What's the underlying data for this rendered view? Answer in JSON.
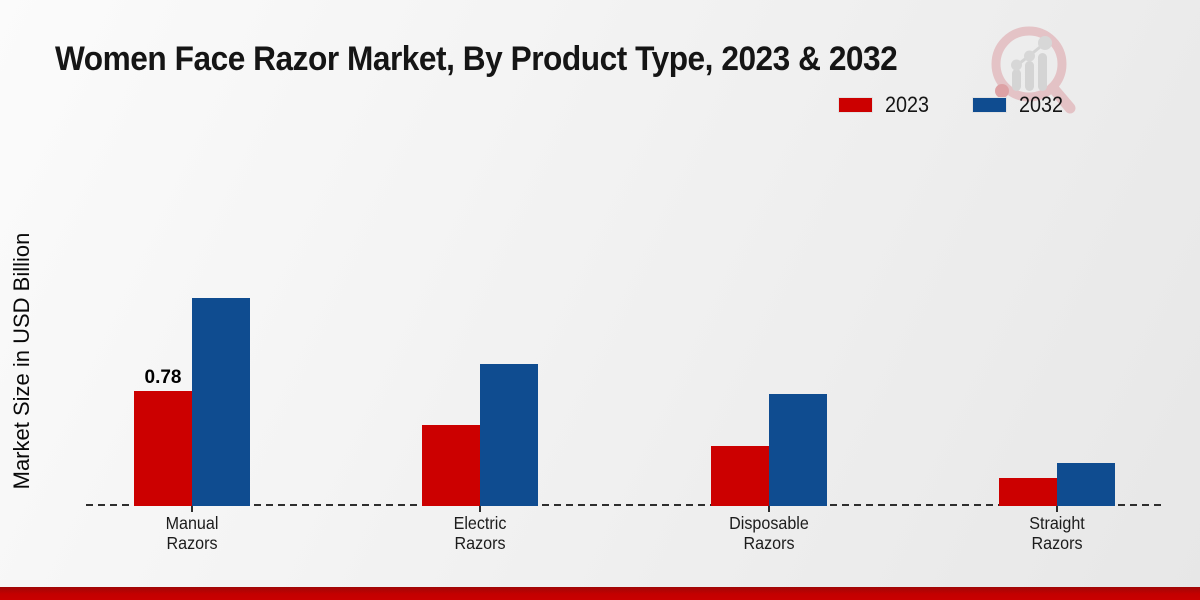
{
  "header": {
    "title": "Women Face Razor Market, By Product Type, 2023 & 2032"
  },
  "branding": {
    "logo_name": "market-research-magnifier-logo",
    "accent_color": "#c40000"
  },
  "chart_data": {
    "type": "bar",
    "title": "Women Face Razor Market, By Product Type, 2023 & 2032",
    "xlabel": "",
    "ylabel": "Market Size in USD Billion",
    "categories": [
      "Manual\nRazors",
      "Electric\nRazors",
      "Disposable\nRazors",
      "Straight\nRazors"
    ],
    "series": [
      {
        "name": "2023",
        "color": "#cc0000",
        "values": [
          0.78,
          0.55,
          0.41,
          0.19
        ]
      },
      {
        "name": "2032",
        "color": "#0f4c90",
        "values": [
          1.41,
          0.96,
          0.76,
          0.29
        ]
      }
    ],
    "data_labels": [
      {
        "series": "2023",
        "category_index": 0,
        "text": "0.78"
      }
    ],
    "ylim": [
      0,
      1.5
    ],
    "axis": {
      "baseline_style": "dashed",
      "gridlines": false,
      "y_ticks_visible": false
    },
    "legend_position": "top-right"
  }
}
